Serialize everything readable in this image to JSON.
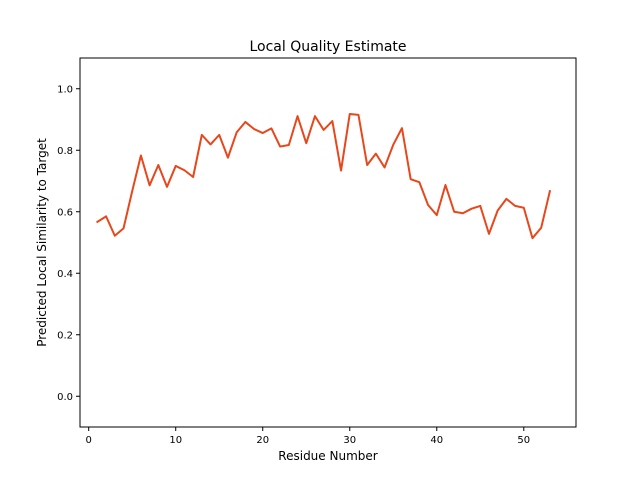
{
  "chart_data": {
    "type": "line",
    "title": "Local Quality Estimate",
    "xlabel": "Residue Number",
    "ylabel": "Predicted Local Similarity to Target",
    "xlim": [
      -1,
      56
    ],
    "ylim": [
      -0.1,
      1.1
    ],
    "xticks": [
      0,
      10,
      20,
      30,
      40,
      50
    ],
    "yticks": [
      0.0,
      0.2,
      0.4,
      0.6,
      0.8,
      1.0
    ],
    "ytick_labels": [
      "0.0",
      "0.2",
      "0.4",
      "0.6",
      "0.8",
      "1.0"
    ],
    "grid": false,
    "series": [
      {
        "color": "#e8471b",
        "x": [
          1,
          2,
          3,
          4,
          5,
          6,
          7,
          8,
          9,
          10,
          11,
          12,
          13,
          14,
          15,
          16,
          17,
          18,
          19,
          20,
          21,
          22,
          23,
          24,
          25,
          26,
          27,
          28,
          29,
          30,
          31,
          32,
          33,
          34,
          35,
          36,
          37,
          38,
          39,
          40,
          41,
          42,
          43,
          44,
          45,
          46,
          47,
          48,
          49,
          50,
          51,
          52,
          53
        ],
        "y": [
          0.567,
          0.585,
          0.522,
          0.546,
          0.667,
          0.783,
          0.686,
          0.752,
          0.681,
          0.749,
          0.735,
          0.713,
          0.85,
          0.819,
          0.85,
          0.776,
          0.858,
          0.892,
          0.869,
          0.856,
          0.871,
          0.812,
          0.817,
          0.911,
          0.823,
          0.911,
          0.866,
          0.895,
          0.734,
          0.918,
          0.915,
          0.752,
          0.789,
          0.744,
          0.818,
          0.872,
          0.706,
          0.696,
          0.622,
          0.589,
          0.687,
          0.6,
          0.595,
          0.61,
          0.619,
          0.528,
          0.604,
          0.642,
          0.619,
          0.613,
          0.514,
          0.548,
          0.667
        ]
      }
    ]
  }
}
